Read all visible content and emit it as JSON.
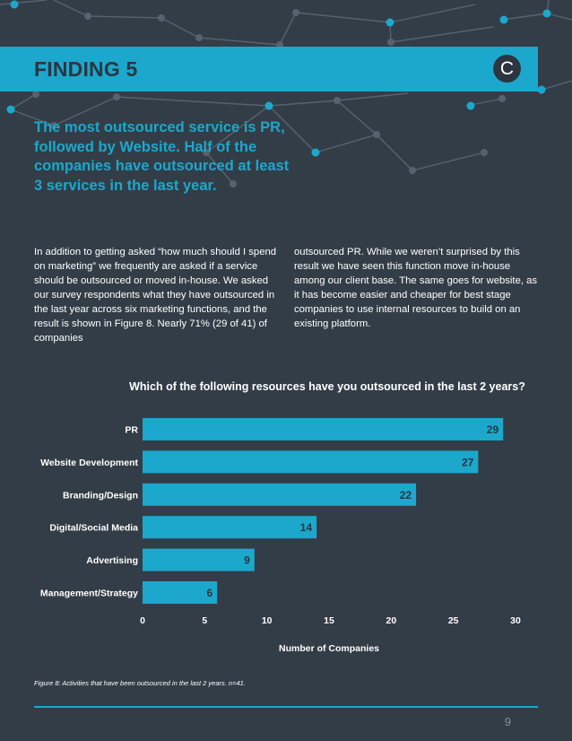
{
  "header": {
    "finding_label": "FINDING 5",
    "logo_letter": "C"
  },
  "subtitle": "The most outsourced service is PR, followed by Website. Half of the companies have outsourced at least 3 services in the last year.",
  "body": {
    "left_column": "In addition to getting asked “how much should I spend on marketing” we frequently are asked if a service should be outsourced or moved in-house. We asked our survey respondents what they have outsourced in the last year across six marketing functions, and the result is shown in Figure 8. Nearly 71% (29 of 41) of companies",
    "right_column": "outsourced PR. While we weren’t surprised by this result we have seen this function move in-house among our client base. The same goes for website, as it has become easier and cheaper for best stage companies to use internal resources to build on an existing platform."
  },
  "chart_data": {
    "type": "bar",
    "orientation": "horizontal",
    "title": "Which of the following resources have you outsourced in the last 2 years?",
    "xlabel": "Number of Companies",
    "ylabel": "",
    "categories": [
      "PR",
      "Website Development",
      "Branding/Design",
      "Digital/Social Media",
      "Advertising",
      "Management/Strategy"
    ],
    "values": [
      29,
      27,
      22,
      14,
      9,
      6
    ],
    "xlim": [
      0,
      30
    ],
    "xticks": [
      0,
      5,
      10,
      15,
      20,
      25,
      30
    ],
    "data_labels": true,
    "grid": false,
    "legend": "none",
    "bar_color": "#1ba8cc",
    "label_color": "#2b3640"
  },
  "caption": "Figure 8: Activities that have been outsourced in the last 2 years. n=41.",
  "page_number": "9",
  "colors": {
    "background": "#333d47",
    "accent": "#1ba8cc",
    "dark": "#2b3640",
    "network": "#56636e"
  }
}
